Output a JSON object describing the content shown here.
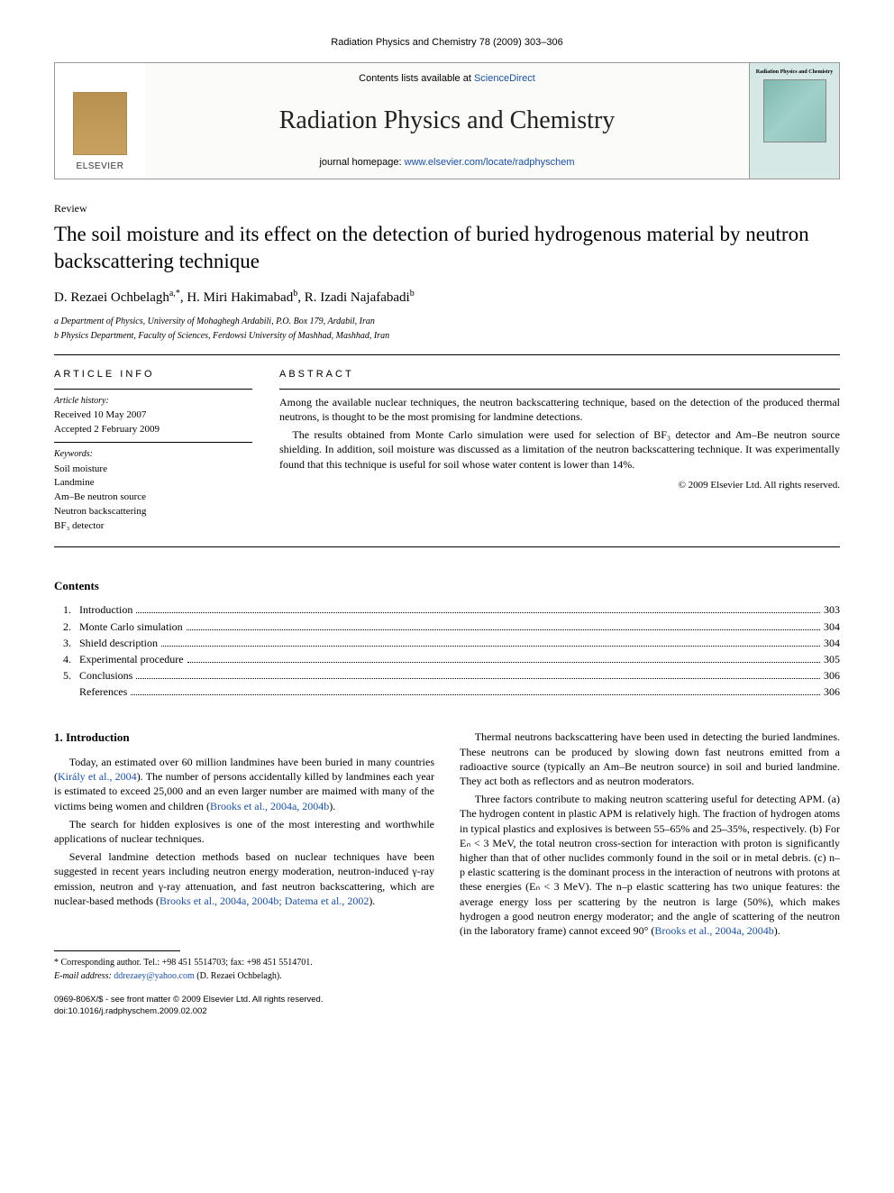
{
  "header": {
    "citation": "Radiation Physics and Chemistry 78 (2009) 303–306"
  },
  "banner": {
    "contents_prefix": "Contents lists available at ",
    "contents_link": "ScienceDirect",
    "journal": "Radiation Physics and Chemistry",
    "homepage_prefix": "journal homepage: ",
    "homepage_link": "www.elsevier.com/locate/radphyschem",
    "publisher": "ELSEVIER",
    "cover_title": "Radiation Physics and Chemistry"
  },
  "article": {
    "type": "Review",
    "title": "The soil moisture and its effect on the detection of buried hydrogenous material by neutron backscattering technique",
    "authors_html": "D. Rezaei Ochbelagh",
    "author_sup1": "a,",
    "author_star": "*",
    "author2": ", H. Miri Hakimabad",
    "author_sup2": "b",
    "author3": ", R. Izadi Najafabadi",
    "author_sup3": "b",
    "affil_a": "a Department of Physics, University of Mohaghegh Ardabili, P.O. Box 179, Ardabil, Iran",
    "affil_b": "b Physics Department, Faculty of Sciences, Ferdowsi University of Mashhad, Mashhad, Iran"
  },
  "info": {
    "head": "ARTICLE INFO",
    "history_label": "Article history:",
    "received": "Received 10 May 2007",
    "accepted": "Accepted 2 February 2009",
    "keywords_label": "Keywords:",
    "k1": "Soil moisture",
    "k2": "Landmine",
    "k3": "Am–Be neutron source",
    "k4": "Neutron backscattering",
    "k5": "BF₃ detector"
  },
  "abstract": {
    "head": "ABSTRACT",
    "p1": "Among the available nuclear techniques, the neutron backscattering technique, based on the detection of the produced thermal neutrons, is thought to be the most promising for landmine detections.",
    "p2": "The results obtained from Monte Carlo simulation were used for selection of BF₃ detector and Am–Be neutron source shielding. In addition, soil moisture was discussed as a limitation of the neutron backscattering technique. It was experimentally found that this technique is useful for soil whose water content is lower than 14%.",
    "copyright": "© 2009 Elsevier Ltd. All rights reserved."
  },
  "contents": {
    "head": "Contents",
    "items": [
      {
        "n": "1.",
        "label": "Introduction",
        "page": "303"
      },
      {
        "n": "2.",
        "label": "Monte Carlo simulation",
        "page": "304"
      },
      {
        "n": "3.",
        "label": "Shield description",
        "page": "304"
      },
      {
        "n": "4.",
        "label": "Experimental procedure",
        "page": "305"
      },
      {
        "n": "5.",
        "label": "Conclusions",
        "page": "306"
      },
      {
        "n": "",
        "label": "References",
        "page": "306"
      }
    ]
  },
  "section1": {
    "head": "1.  Introduction",
    "p1a": "Today, an estimated over 60 million landmines have been buried in many countries (",
    "p1link": "Király et al., 2004",
    "p1b": "). The number of persons accidentally killed by landmines each year is estimated to exceed 25,000 and an even larger number are maimed with many of the victims being women and children (",
    "p1link2": "Brooks et al., 2004a, 2004b",
    "p1c": ").",
    "p2": "The search for hidden explosives is one of the most interesting and worthwhile applications of nuclear techniques.",
    "p3a": "Several landmine detection methods based on nuclear techniques have been suggested in recent years including neutron energy moderation, neutron-induced γ-ray emission, neutron and γ-ray attenuation, and fast neutron backscattering, which are nuclear-based methods (",
    "p3link": "Brooks et al., 2004a, 2004b; Datema et al., 2002",
    "p3b": ").",
    "p4": "Thermal neutrons backscattering have been used in detecting the buried landmines. These neutrons can be produced by slowing down fast neutrons emitted from a radioactive source (typically an Am–Be neutron source) in soil and buried landmine. They act both as reflectors and as neutron moderators.",
    "p5a": "Three factors contribute to making neutron scattering useful for detecting APM. (a) The hydrogen content in plastic APM is relatively high. The fraction of hydrogen atoms in typical plastics and explosives is between 55–65% and 25–35%, respectively. (b) For Eₙ < 3 MeV, the total neutron cross-section for interaction with proton is significantly higher than that of other nuclides commonly found in the soil or in metal debris. (c) n–p elastic scattering is the dominant process in the interaction of neutrons with protons at these energies (Eₙ < 3 MeV). The n–p elastic scattering has two unique features: the average energy loss per scattering by the neutron is large (50%), which makes hydrogen a good neutron energy moderator; and the angle of scattering of the neutron (in the laboratory frame) cannot exceed 90° (",
    "p5link": "Brooks et al., 2004a, 2004b",
    "p5b": ")."
  },
  "footnotes": {
    "corr": "* Corresponding author. Tel.: +98 451 5514703; fax: +98 451 5514701.",
    "email_label": "E-mail address: ",
    "email": "ddrezaey@yahoo.com",
    "email_suffix": " (D. Rezaei Ochbelagh)."
  },
  "footer": {
    "line1": "0969-806X/$ - see front matter © 2009 Elsevier Ltd. All rights reserved.",
    "line2": "doi:10.1016/j.radphyschem.2009.02.002"
  }
}
